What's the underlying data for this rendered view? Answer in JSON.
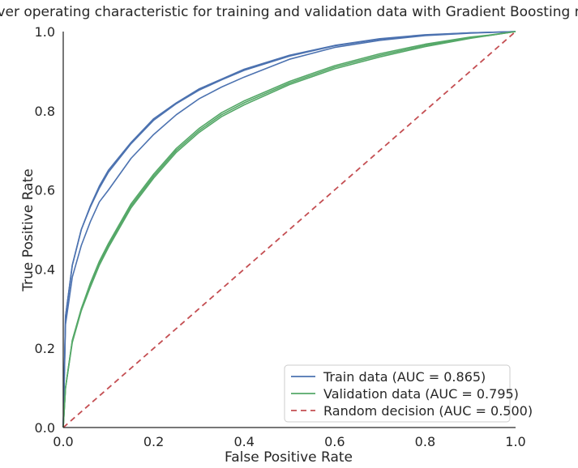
{
  "chart_data": {
    "type": "line",
    "title": "Receiver operating characteristic for training and validation data with Gradient Boosting model",
    "xlabel": "False Positive Rate",
    "ylabel": "True Positive Rate",
    "xlim": [
      0.0,
      1.0
    ],
    "ylim": [
      0.0,
      1.0
    ],
    "xticks": [
      "0.0",
      "0.2",
      "0.4",
      "0.6",
      "0.8",
      "1.0"
    ],
    "yticks": [
      "0.0",
      "0.2",
      "0.4",
      "0.6",
      "0.8",
      "1.0"
    ],
    "grid": false,
    "legend_position": "lower-right",
    "legend": [
      {
        "label": "Train data (AUC = 0.865)",
        "color": "#4c72b0",
        "dash": false
      },
      {
        "label": "Validation data (AUC = 0.795)",
        "color": "#55a868",
        "dash": false
      },
      {
        "label": "Random decision (AUC = 0.500)",
        "color": "#c44e52",
        "dash": true
      }
    ],
    "series": [
      {
        "color": "#4c72b0",
        "x": [
          0,
          0.005,
          0.02,
          0.04,
          0.06,
          0.08,
          0.1,
          0.15,
          0.2,
          0.25,
          0.3,
          0.35,
          0.4,
          0.5,
          0.6,
          0.7,
          0.8,
          0.9,
          1.0
        ],
        "y": [
          0,
          0.28,
          0.41,
          0.5,
          0.56,
          0.61,
          0.65,
          0.72,
          0.78,
          0.82,
          0.855,
          0.88,
          0.905,
          0.94,
          0.965,
          0.982,
          0.992,
          0.997,
          1.0
        ]
      },
      {
        "color": "#4c72b0",
        "x": [
          0,
          0.005,
          0.02,
          0.04,
          0.06,
          0.08,
          0.1,
          0.15,
          0.2,
          0.25,
          0.3,
          0.35,
          0.4,
          0.5,
          0.6,
          0.7,
          0.8,
          0.9,
          1.0
        ],
        "y": [
          0,
          0.28,
          0.41,
          0.5,
          0.557,
          0.605,
          0.645,
          0.717,
          0.776,
          0.818,
          0.852,
          0.878,
          0.902,
          0.938,
          0.964,
          0.981,
          0.991,
          0.997,
          1.0
        ]
      },
      {
        "color": "#4c72b0",
        "x": [
          0,
          0.005,
          0.02,
          0.04,
          0.06,
          0.08,
          0.1,
          0.15,
          0.2,
          0.25,
          0.3,
          0.35,
          0.4,
          0.5,
          0.6,
          0.7,
          0.8,
          0.9,
          1.0
        ],
        "y": [
          0,
          0.26,
          0.38,
          0.46,
          0.52,
          0.57,
          0.6,
          0.68,
          0.74,
          0.79,
          0.83,
          0.86,
          0.885,
          0.93,
          0.96,
          0.978,
          0.99,
          0.996,
          1.0
        ]
      },
      {
        "color": "#55a868",
        "x": [
          0,
          0.005,
          0.02,
          0.04,
          0.06,
          0.08,
          0.1,
          0.15,
          0.2,
          0.25,
          0.3,
          0.35,
          0.4,
          0.5,
          0.6,
          0.7,
          0.8,
          0.9,
          0.94,
          1.0
        ],
        "y": [
          0,
          0.1,
          0.22,
          0.3,
          0.36,
          0.415,
          0.46,
          0.56,
          0.635,
          0.7,
          0.75,
          0.79,
          0.82,
          0.87,
          0.91,
          0.94,
          0.965,
          0.985,
          0.99,
          1.0
        ]
      },
      {
        "color": "#55a868",
        "x": [
          0,
          0.005,
          0.02,
          0.04,
          0.06,
          0.08,
          0.1,
          0.15,
          0.2,
          0.25,
          0.3,
          0.35,
          0.4,
          0.5,
          0.6,
          0.7,
          0.8,
          0.9,
          0.94,
          1.0
        ],
        "y": [
          0,
          0.1,
          0.22,
          0.3,
          0.365,
          0.42,
          0.465,
          0.565,
          0.64,
          0.705,
          0.755,
          0.795,
          0.825,
          0.874,
          0.914,
          0.944,
          0.968,
          0.986,
          0.991,
          1.0
        ]
      },
      {
        "color": "#55a868",
        "x": [
          0,
          0.005,
          0.02,
          0.04,
          0.06,
          0.08,
          0.1,
          0.15,
          0.2,
          0.25,
          0.3,
          0.35,
          0.4,
          0.5,
          0.6,
          0.7,
          0.8,
          0.9,
          0.94,
          1.0
        ],
        "y": [
          0,
          0.1,
          0.215,
          0.295,
          0.355,
          0.41,
          0.455,
          0.555,
          0.63,
          0.695,
          0.745,
          0.785,
          0.815,
          0.866,
          0.906,
          0.936,
          0.962,
          0.983,
          0.99,
          1.0
        ]
      },
      {
        "color": "#c44e52",
        "dash": true,
        "x": [
          0,
          1
        ],
        "y": [
          0,
          1
        ]
      }
    ]
  }
}
